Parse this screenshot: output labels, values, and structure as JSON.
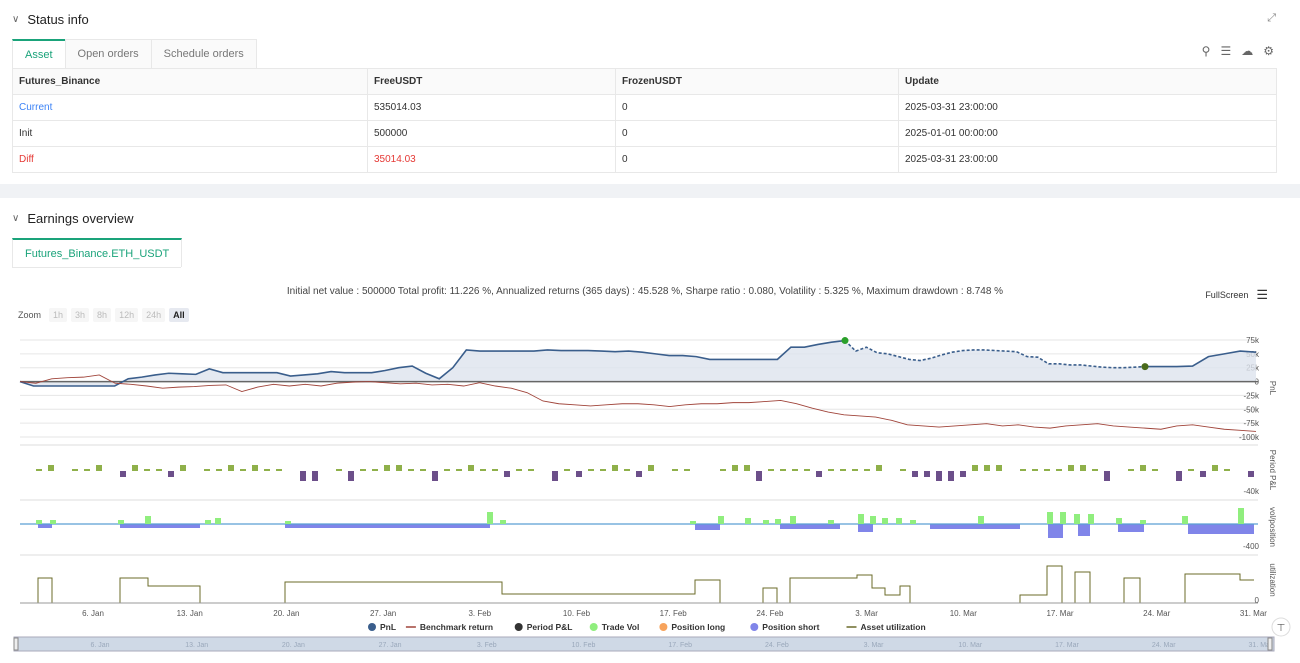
{
  "status": {
    "title": "Status info",
    "tabs": [
      "Asset",
      "Open orders",
      "Schedule orders"
    ],
    "columns": [
      "Futures_Binance",
      "FreeUSDT",
      "FrozenUSDT",
      "Update"
    ],
    "rows": [
      [
        "Current",
        "535014.03",
        "0",
        "2025-03-31 23:00:00"
      ],
      [
        "Init",
        "500000",
        "0",
        "2025-01-01 00:00:00"
      ],
      [
        "Diff",
        "35014.03",
        "0",
        "2025-03-31 23:00:00"
      ]
    ]
  },
  "earnings": {
    "title": "Earnings overview",
    "tab": "Futures_Binance.ETH_USDT",
    "summary": "Initial net value : 500000 Total profit: 11.226 %, Annualized returns (365 days) : 45.528 %, Sharpe ratio : 0.080, Volatility : 5.325 %, Maximum drawdown : 8.748 %",
    "fullscreen": "FullScreen",
    "zoom_label": "Zoom",
    "zoom_options": [
      "1h",
      "3h",
      "8h",
      "12h",
      "24h",
      "All"
    ]
  },
  "chart_data": {
    "type": "line",
    "x_ticks": [
      "6. Jan",
      "13. Jan",
      "20. Jan",
      "27. Jan",
      "3. Feb",
      "10. Feb",
      "17. Feb",
      "24. Feb",
      "3. Mar",
      "10. Mar",
      "17. Mar",
      "24. Mar",
      "31. Mar"
    ],
    "pnl_axis": {
      "label": "PnL",
      "ticks": [
        "75k",
        "50k",
        "25k",
        "0",
        "-25k",
        "-50k",
        "-75k",
        "-100k"
      ],
      "ylim": [
        -100000,
        75000
      ]
    },
    "period_axis": {
      "label": "Period P&L",
      "ticks": [
        "-40k"
      ]
    },
    "vol_axis": {
      "label": "vol/position",
      "ticks": [
        "-400"
      ]
    },
    "util_axis": {
      "label": "utilization",
      "ticks": [
        "0"
      ]
    },
    "series": [
      {
        "name": "PnL",
        "color": "#3a5e8c",
        "values": [
          0,
          -8000,
          -8000,
          -8000,
          -8000,
          -8000,
          -8000,
          -8000,
          5000,
          8000,
          12000,
          15000,
          14000,
          13000,
          23000,
          16000,
          16000,
          16000,
          16000,
          16000,
          10000,
          12000,
          14000,
          18000,
          16000,
          16000,
          16000,
          20000,
          25000,
          28000,
          15000,
          5000,
          25000,
          57000,
          55000,
          55000,
          55000,
          55000,
          55000,
          57000,
          56000,
          56000,
          56000,
          55000,
          54000,
          55000,
          53000,
          50000,
          47000,
          47000,
          45000,
          40000,
          40000,
          40000,
          40000,
          40000,
          40000,
          62000,
          62000,
          67000,
          71000,
          74000
        ]
      },
      {
        "name": "PnL (dashed)",
        "color": "#3a5e8c",
        "values": [
          74000,
          55000,
          62000,
          52000,
          50000,
          45000,
          40000,
          38000,
          42000,
          48000,
          53000,
          56000,
          57000,
          57000,
          56000,
          55000,
          54000,
          45000,
          44000,
          32000,
          32000,
          30000,
          30000,
          28000,
          26000,
          25000,
          25000,
          26000,
          27000
        ]
      },
      {
        "name": "PnL (end)",
        "color": "#3a5e8c",
        "values": [
          27000,
          27000,
          27000,
          28000,
          45000,
          50000,
          55000,
          53000
        ]
      },
      {
        "name": "Benchmark return",
        "color": "#a0443a",
        "values": [
          0,
          -3000,
          5000,
          7000,
          8000,
          12000,
          -3000,
          -5000,
          -8000,
          -12000,
          -10000,
          -9000,
          -7000,
          -6000,
          -18000,
          -10000,
          -5000,
          -8000,
          -5000,
          -8000,
          -3000,
          -1000,
          0,
          -2000,
          -4000,
          -3000,
          -6000,
          -5000,
          -8000,
          -2000,
          -8000,
          -12000,
          -20000,
          -35000,
          -40000,
          -42000,
          -44000,
          -42000,
          -40000,
          -40000,
          -42000,
          -45000,
          -42000,
          -40000,
          -40000,
          -38000,
          -38000,
          -36000,
          -34000,
          -40000,
          -48000,
          -55000,
          -60000,
          -62000,
          -64000,
          -70000,
          -78000,
          -80000,
          -82000,
          -80000,
          -78000,
          -76000,
          -80000,
          -78000,
          -82000,
          -84000,
          -80000,
          -78000,
          -76000,
          -80000,
          -82000,
          -84000,
          -86000,
          -80000,
          -78000,
          -82000,
          -86000,
          -88000,
          -90000
        ]
      },
      {
        "name": "Period P&L",
        "color": "#333333",
        "values": []
      },
      {
        "name": "Trade Vol",
        "color": "#90ee7e",
        "values": []
      },
      {
        "name": "Position long",
        "color": "#f7a35c",
        "values": []
      },
      {
        "name": "Position short",
        "color": "#8085e9",
        "values": []
      },
      {
        "name": "Asset utilization",
        "color": "#6b6b2a",
        "values": []
      }
    ],
    "legend": [
      "PnL",
      "Benchmark return",
      "Period P&L",
      "Trade Vol",
      "Position long",
      "Position short",
      "Asset utilization"
    ],
    "legend_colors": [
      "#3a5e8c",
      "#a0443a",
      "#333333",
      "#90ee7e",
      "#f7a35c",
      "#8085e9",
      "#6b6b2a"
    ]
  }
}
